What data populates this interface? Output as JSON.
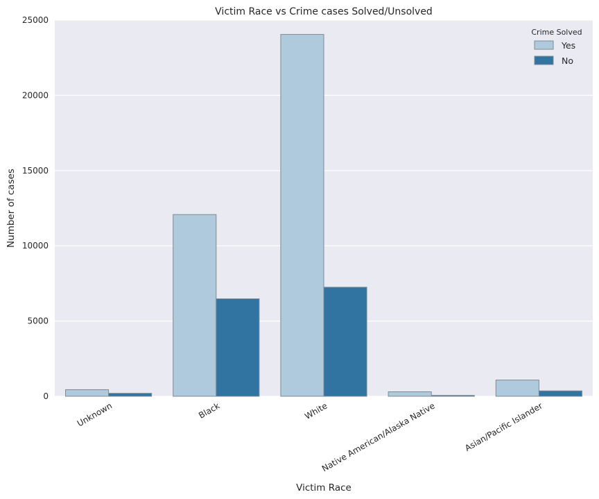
{
  "chart_data": {
    "type": "bar",
    "title": "Victim Race vs Crime cases Solved/Unsolved",
    "xlabel": "Victim Race",
    "ylabel": "Number of cases",
    "categories": [
      "Unknown",
      "Black",
      "White",
      "Native American/Alaska Native",
      "Asian/Pacific Islander"
    ],
    "series": [
      {
        "name": "Yes",
        "values": [
          440,
          12080,
          24050,
          300,
          1080
        ],
        "color": "#afcadc"
      },
      {
        "name": "No",
        "values": [
          200,
          6480,
          7250,
          60,
          360
        ],
        "color": "#3274a1"
      }
    ],
    "ylim": [
      0,
      25000
    ],
    "yticks": [
      0,
      5000,
      10000,
      15000,
      20000,
      25000
    ],
    "grid": true,
    "legend": {
      "title": "Crime Solved",
      "position": "top-right"
    },
    "colors": {
      "plot_background": "#eaeaf2",
      "grid": "#ffffff",
      "bar_edge": "#7f8a93"
    }
  }
}
